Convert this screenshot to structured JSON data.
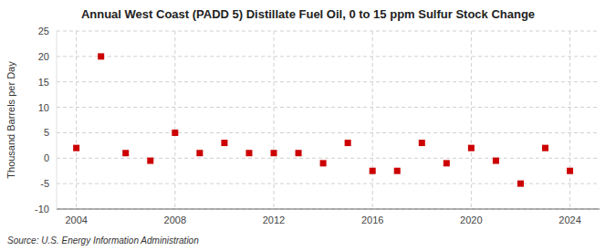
{
  "chart_data": {
    "type": "scatter",
    "title": "Annual West Coast (PADD 5) Distillate Fuel Oil, 0 to 15 ppm Sulfur Stock Change",
    "y_label": "Thousand Barrels per Day",
    "annotations": [
      "Source: U.S. Energy Information Administration"
    ],
    "x": [
      2004,
      2005,
      2006,
      2007,
      2008,
      2009,
      2010,
      2011,
      2012,
      2013,
      2014,
      2015,
      2016,
      2017,
      2018,
      2019,
      2020,
      2021,
      2022,
      2023,
      2024
    ],
    "values": [
      2.0,
      20.0,
      1.0,
      -0.5,
      5.0,
      1.0,
      3.0,
      1.0,
      1.0,
      1.0,
      -1.0,
      3.0,
      -2.5,
      -2.5,
      3.0,
      -1.0,
      2.0,
      -0.5,
      -5.0,
      2.0,
      -2.5
    ],
    "color": "#cc0000",
    "marker": "square",
    "xlim": [
      2003.2,
      2025.2
    ],
    "ylim": [
      -10,
      25
    ],
    "xticks": [
      2004,
      2008,
      2012,
      2016,
      2020,
      2024
    ],
    "yticks": [
      -10,
      -5,
      0,
      5,
      10,
      15,
      20,
      25
    ],
    "grid": true
  }
}
